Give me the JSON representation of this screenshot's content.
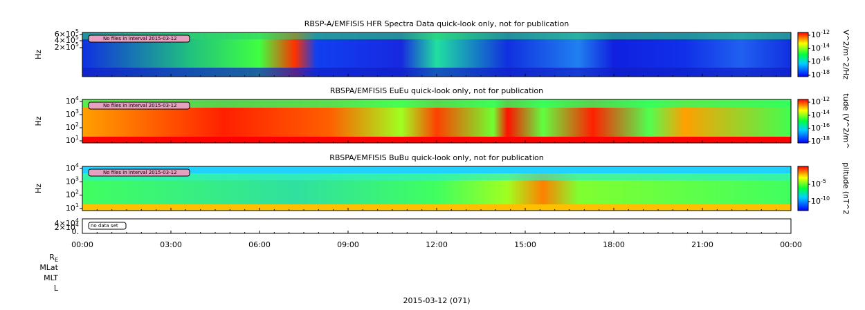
{
  "panels": [
    {
      "title": "RBSP-A/EMFISIS  HFR Spectra Data quick-look only, not for publication",
      "y_label": "Hz",
      "y_ticks": [
        {
          "text": "6×10",
          "sup": "5"
        },
        {
          "text": "4×10",
          "sup": "5"
        },
        {
          "text": "2×10",
          "sup": "5"
        }
      ],
      "note": "No files in interval 2015-03-12",
      "colorbar_label": "V^2/m^2/Hz",
      "colorbar_ticks": [
        {
          "text": "10",
          "sup": "-12"
        },
        {
          "text": "10",
          "sup": "-14"
        },
        {
          "text": "10",
          "sup": "-16"
        },
        {
          "text": "10",
          "sup": "-18"
        }
      ]
    },
    {
      "title": "RBSPA/EMFISIS  EuEu quick-look only, not for publication",
      "y_label": "Hz",
      "y_ticks": [
        {
          "text": "10",
          "sup": "4"
        },
        {
          "text": "10",
          "sup": "3"
        },
        {
          "text": "10",
          "sup": "2"
        },
        {
          "text": "10",
          "sup": "1"
        }
      ],
      "note": "No files in interval 2015-03-12",
      "colorbar_label": "tude (V^2/m^",
      "colorbar_ticks": [
        {
          "text": "10",
          "sup": "-12"
        },
        {
          "text": "10",
          "sup": "-14"
        },
        {
          "text": "10",
          "sup": "-16"
        },
        {
          "text": "10",
          "sup": "-18"
        }
      ]
    },
    {
      "title": "RBSPA/EMFISIS  BuBu quick-look only, not for publication",
      "y_label": "Hz",
      "y_ticks": [
        {
          "text": "10",
          "sup": "4"
        },
        {
          "text": "10",
          "sup": "3"
        },
        {
          "text": "10",
          "sup": "2"
        },
        {
          "text": "10",
          "sup": "1"
        }
      ],
      "note": "No files in interval 2015-03-12",
      "colorbar_label": "plitude (nT^2",
      "colorbar_ticks": [
        {
          "text": "10",
          "sup": "-5"
        },
        {
          "text": "10",
          "sup": "-10"
        }
      ]
    }
  ],
  "ephemeris_panel": {
    "y_ticks": [
      {
        "text": "4×10",
        "sup": "4"
      },
      {
        "text": "2×10",
        "sup": "4"
      },
      {
        "text": "0.",
        "sup": ""
      }
    ],
    "note": "no data set"
  },
  "x_ticks": [
    "00:00",
    "03:00",
    "06:00",
    "09:00",
    "12:00",
    "15:00",
    "18:00",
    "21:00",
    "00:00"
  ],
  "ephemeris_labels": [
    "R",
    "MLat",
    "MLT",
    "L"
  ],
  "ephemeris_subscript": "E",
  "date_label": "2015-03-12 (071)"
}
